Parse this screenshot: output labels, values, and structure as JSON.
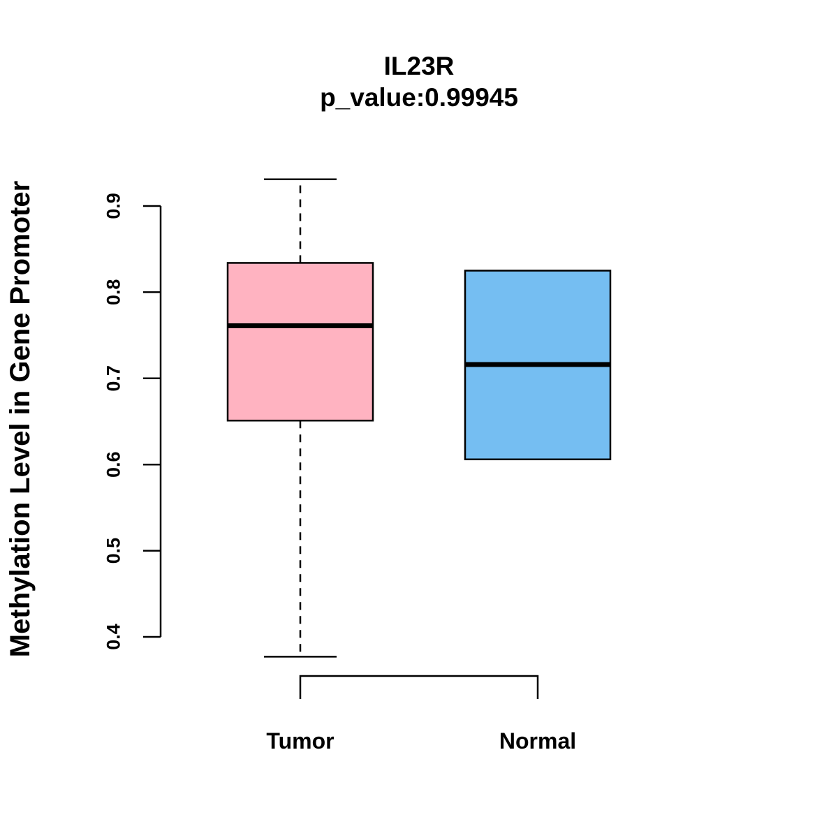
{
  "chart_data": {
    "type": "boxplot",
    "title": "IL23R",
    "subtitle": "p_value:0.99945",
    "ylabel": "Methylation Level in Gene Promoter",
    "xlabel": "",
    "categories": [
      "Tumor",
      "Normal"
    ],
    "ylim": [
      0.35,
      0.95
    ],
    "yticks": [
      0.4,
      0.5,
      0.6,
      0.7,
      0.8,
      0.9
    ],
    "grid": false,
    "legend": "none",
    "series": [
      {
        "name": "Tumor",
        "color": "#FFB3C1",
        "min": 0.377,
        "q1": 0.651,
        "median": 0.761,
        "q3": 0.834,
        "max": 0.931
      },
      {
        "name": "Normal",
        "color": "#75BEF2",
        "min": 0.606,
        "q1": 0.606,
        "median": 0.716,
        "q3": 0.825,
        "max": 0.825
      }
    ],
    "colors": {
      "box_border": "#000000",
      "median": "#000000",
      "axis": "#000000",
      "background": "#ffffff"
    }
  }
}
